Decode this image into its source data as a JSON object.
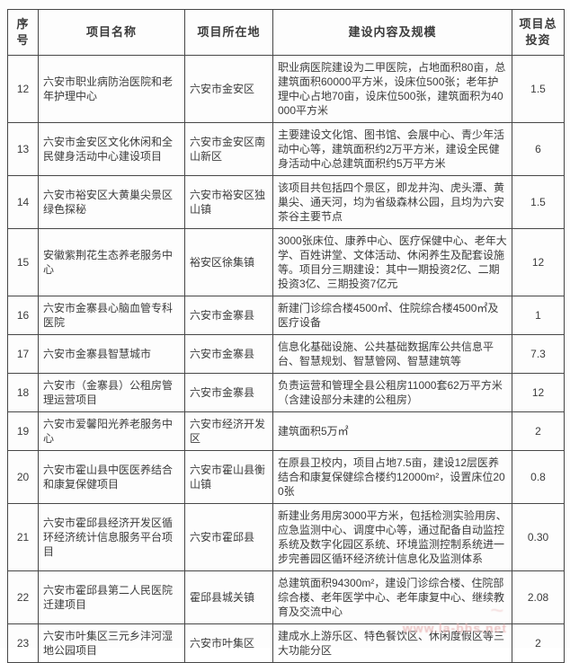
{
  "theme": {
    "page_bg": "#fdfdfd",
    "border_color": "#474747",
    "text_color": "#3b3b3b",
    "watermark_color": "#e9b6b6"
  },
  "watermark": {
    "url_text": "www.la-bbs.net",
    "glyph_text": "~"
  },
  "table": {
    "headers": [
      "序号",
      "项目名称",
      "项目所在地",
      "建设内容及规模",
      "项目总投资"
    ],
    "rows": [
      {
        "no": "12",
        "name": "六安市职业病防治医院和老年护理中心",
        "location": "六安市金安区",
        "content": "职业病医院建设为二甲医院，占地面积80亩，总建筑面积60000平方米，设床位500张；老年护理中心占地70亩，设床位500张，建筑面积为40000平方米",
        "investment": "1.5"
      },
      {
        "no": "13",
        "name": "六安市金安区文化休闲和全民健身活动中心建设项目",
        "location": "六安市金安区南山新区",
        "content": "主要建设文化馆、图书馆、会展中心、青少年活动中心等，建筑面积约2万平方米，建设全民健身活动中心总建筑面积约5万平方米",
        "investment": "6"
      },
      {
        "no": "14",
        "name": "六安市裕安区大黄巢尖景区绿色探秘",
        "location": "六安市裕安区独山镇",
        "content": "该项目共包括四个景区，即龙井沟、虎头潭、黄巢尖、通天河，均为省级森林公园，且均为六安茶谷主要节点",
        "investment": "1.5"
      },
      {
        "no": "15",
        "name": "安徽紫荆花生态养老服务中心",
        "location": "裕安区徐集镇",
        "content": "3000张床位、康养中心、医疗保健中心、老年大学、百姓讲堂、文体活动、休闲养生及配套设施等。项目分三期建设：其中一期投资2亿、二期投资3亿、三期投资7亿元",
        "investment": "12"
      },
      {
        "no": "16",
        "name": "六安市金寨县心脑血管专科医院",
        "location": "六安市金寨县",
        "content": "新建门诊综合楼4500㎡、住院综合楼4500㎡及医疗设备",
        "investment": "1"
      },
      {
        "no": "17",
        "name": "六安市金寨县智慧城市",
        "location": "六安市金寨县",
        "content": "信息化基础设施、公共基础数据库公共信息平台、智慧规划、智慧管网、智慧建筑等",
        "investment": "7.3"
      },
      {
        "no": "18",
        "name": "六安市（金寨县）公租房管理运营项目",
        "location": "六安市金寨县",
        "content": "负责运营和管理全县公租房11000套62万平方米（含建设部分未建的公租房）",
        "investment": "12"
      },
      {
        "no": "19",
        "name": "六安市爱馨阳光养老服务中心",
        "location": "六安市经济开发区",
        "content": "建筑面积5万㎡",
        "investment": "2"
      },
      {
        "no": "20",
        "name": "六安市霍山县中医医养结合和康复保健项目",
        "location": "六安市霍山县衡山镇",
        "content": "在原县卫校内，项目占地7.5亩，建设12层医养结合和康复保健综合楼约12000m²，设置床位200张",
        "investment": "0.8"
      },
      {
        "no": "21",
        "name": "六安市霍邱县经济开发区循环经济统计信息服务平台项目",
        "location": "六安市霍邱县",
        "content": "新建业务用房3000平方米，包括检测实验用房、应急监测中心、调度中心等，通过配备自动监控系统及数字化园区系统、环境监测控制系统进一步完善园区循环经济统计信息化及监测体系",
        "investment": "0.30"
      },
      {
        "no": "22",
        "name": "六安市霍邱县第二人民医院迁建项目",
        "location": "霍邱县城关镇",
        "content": "总建筑面积94300m²，建设门诊综合楼、住院部综合楼、老年医学中心、老年康复中心、继续教育及交流中心",
        "investment": "2.08"
      },
      {
        "no": "23",
        "name": "六安市叶集区三元乡沣河湿地公园项目",
        "location": "六安市叶集区",
        "content": "建成水上游乐区、特色餐饮区、休闲度假区等三大功能分区",
        "investment": "2"
      }
    ]
  }
}
